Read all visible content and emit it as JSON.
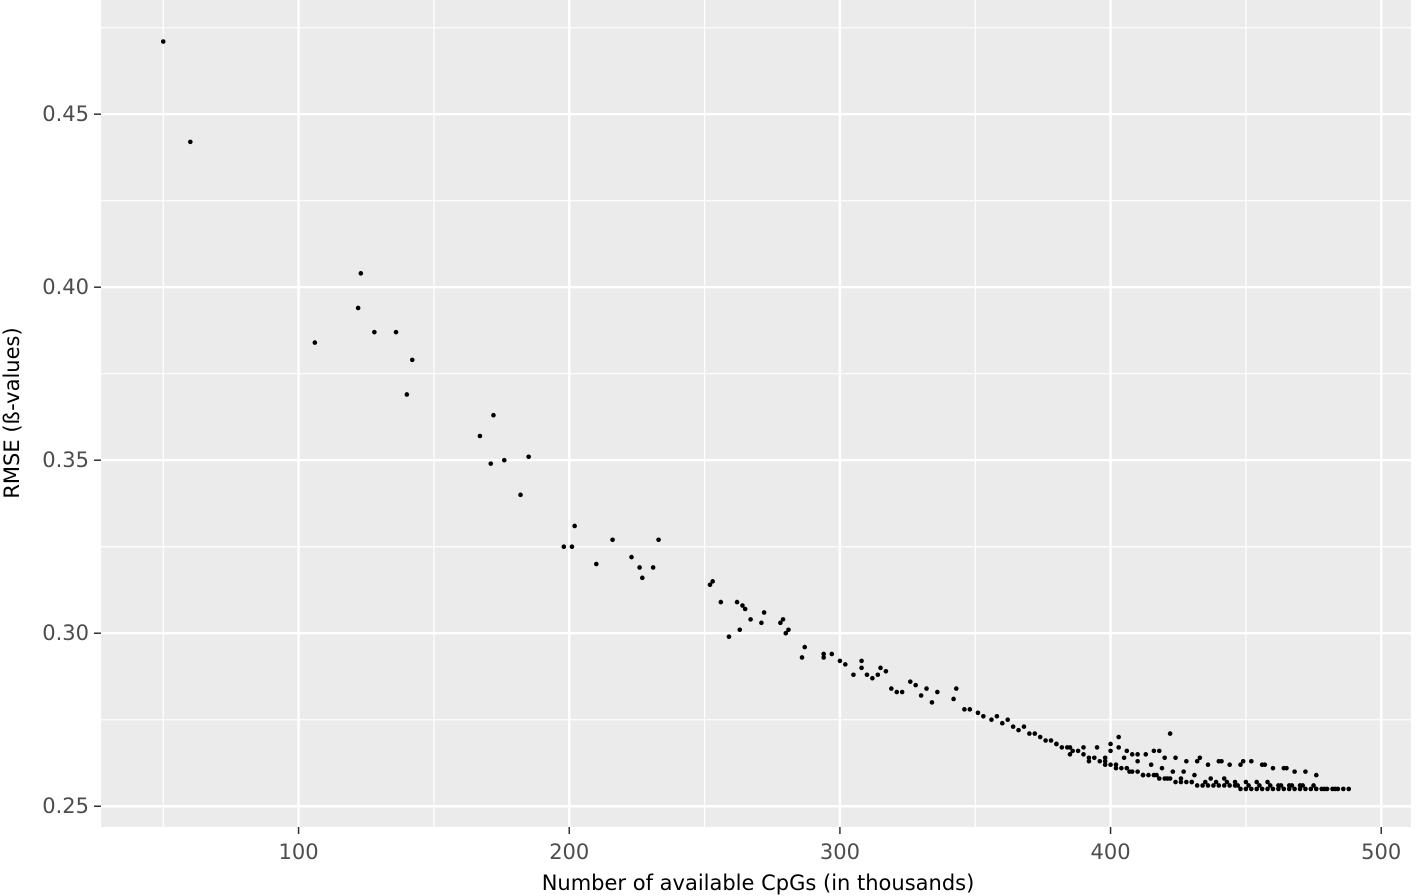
{
  "colors": {
    "panel": "#ebebeb",
    "grid_major": "#ffffff",
    "point": "#000000",
    "tick_text": "#4d4d4d",
    "title_text": "#000000"
  },
  "chart_data": {
    "type": "scatter",
    "title": "",
    "xlabel": "Number of available CpGs (in thousands)",
    "ylabel": "RMSE (ß-values)",
    "xlim": [
      27,
      511
    ],
    "ylim": [
      0.244,
      0.483
    ],
    "x_ticks": [
      100,
      200,
      300,
      400,
      500
    ],
    "x_tick_labels": [
      "100",
      "200",
      "300",
      "400",
      "500"
    ],
    "y_ticks": [
      0.25,
      0.3,
      0.35,
      0.4,
      0.45
    ],
    "y_tick_labels": [
      "0.25",
      "0.30",
      "0.35",
      "0.40",
      "0.45"
    ],
    "grid": true,
    "legend": "none",
    "marker": "small black dot",
    "point_count_note": "dense cloud from ~380k to ~490k CpGs",
    "x": [
      50,
      60,
      106,
      122,
      123,
      128,
      136,
      140,
      142,
      167,
      171,
      172,
      176,
      182,
      185,
      198,
      201,
      202,
      210,
      216,
      223,
      226,
      227,
      231,
      233,
      252,
      253,
      256,
      259,
      262,
      263,
      264,
      265,
      267,
      271,
      272,
      278,
      279,
      280,
      281,
      286,
      287,
      294,
      294,
      297,
      300,
      302,
      305,
      308,
      308,
      310,
      312,
      314,
      315,
      317,
      319,
      321,
      323,
      326,
      328,
      330,
      332,
      334,
      336,
      342,
      343,
      346,
      348,
      351,
      353,
      356,
      358,
      360,
      362,
      364,
      366,
      368,
      370,
      372,
      374,
      376,
      378,
      380,
      382,
      384,
      386,
      388,
      390,
      392,
      394,
      396,
      398,
      400,
      402,
      404,
      406,
      408,
      410,
      412,
      414,
      416,
      418,
      420,
      422,
      424,
      426,
      428,
      430,
      432,
      434,
      436,
      438,
      440,
      442,
      444,
      446,
      448,
      450,
      452,
      454,
      456,
      458,
      460,
      462,
      464,
      466,
      468,
      470,
      472,
      474,
      476,
      478,
      480,
      482,
      484,
      486,
      488
    ],
    "y": [
      0.471,
      0.442,
      0.384,
      0.394,
      0.404,
      0.387,
      0.387,
      0.369,
      0.379,
      0.357,
      0.349,
      0.363,
      0.35,
      0.34,
      0.351,
      0.325,
      0.325,
      0.331,
      0.32,
      0.327,
      0.322,
      0.319,
      0.316,
      0.319,
      0.327,
      0.314,
      0.315,
      0.309,
      0.299,
      0.309,
      0.301,
      0.308,
      0.307,
      0.304,
      0.303,
      0.306,
      0.303,
      0.304,
      0.3,
      0.301,
      0.293,
      0.296,
      0.293,
      0.294,
      0.294,
      0.292,
      0.291,
      0.288,
      0.29,
      0.292,
      0.288,
      0.287,
      0.288,
      0.29,
      0.289,
      0.284,
      0.283,
      0.283,
      0.286,
      0.285,
      0.282,
      0.284,
      0.28,
      0.283,
      0.281,
      0.284,
      0.278,
      0.278,
      0.277,
      0.276,
      0.275,
      0.276,
      0.274,
      0.275,
      0.273,
      0.272,
      0.273,
      0.271,
      0.271,
      0.27,
      0.269,
      0.269,
      0.268,
      0.267,
      0.267,
      0.266,
      0.266,
      0.265,
      0.264,
      0.264,
      0.263,
      0.263,
      0.262,
      0.262,
      0.261,
      0.261,
      0.26,
      0.26,
      0.259,
      0.259,
      0.259,
      0.258,
      0.258,
      0.258,
      0.257,
      0.257,
      0.257,
      0.257,
      0.256,
      0.256,
      0.256,
      0.256,
      0.256,
      0.256,
      0.256,
      0.256,
      0.255,
      0.255,
      0.255,
      0.255,
      0.255,
      0.255,
      0.255,
      0.255,
      0.255,
      0.255,
      0.255,
      0.255,
      0.255,
      0.255,
      0.255,
      0.255,
      0.255,
      0.255,
      0.255,
      0.255,
      0.255
    ],
    "extra_series": [
      {
        "x": [
          380,
          385,
          390,
          395,
          400,
          403,
          406,
          410,
          413,
          416,
          420,
          424,
          428,
          432,
          436,
          440,
          444,
          448,
          452,
          456,
          460,
          464,
          468,
          472,
          476
        ],
        "y": [
          0.268,
          0.267,
          0.267,
          0.267,
          0.268,
          0.267,
          0.266,
          0.265,
          0.265,
          0.266,
          0.264,
          0.264,
          0.263,
          0.263,
          0.262,
          0.263,
          0.262,
          0.262,
          0.263,
          0.262,
          0.261,
          0.261,
          0.26,
          0.26,
          0.259
        ]
      },
      {
        "x": [
          385,
          392,
          398,
          402,
          407,
          412,
          417,
          421,
          426,
          430,
          435,
          439,
          443,
          447,
          451,
          455,
          459,
          463,
          467,
          471,
          475,
          479,
          483
        ],
        "y": [
          0.265,
          0.263,
          0.262,
          0.261,
          0.26,
          0.259,
          0.259,
          0.258,
          0.258,
          0.257,
          0.257,
          0.257,
          0.257,
          0.256,
          0.256,
          0.256,
          0.256,
          0.256,
          0.256,
          0.256,
          0.256,
          0.255,
          0.255
        ]
      },
      {
        "x": [
          398,
          400,
          405,
          410,
          415,
          419,
          423,
          427,
          431,
          437,
          442,
          446,
          450,
          454,
          458,
          462,
          466,
          470
        ],
        "y": [
          0.264,
          0.266,
          0.264,
          0.263,
          0.262,
          0.261,
          0.26,
          0.26,
          0.259,
          0.258,
          0.258,
          0.257,
          0.257,
          0.257,
          0.257,
          0.256,
          0.256,
          0.256
        ]
      },
      {
        "x": [
          403,
          408,
          418,
          422,
          433,
          441,
          449,
          457,
          465
        ],
        "y": [
          0.27,
          0.265,
          0.266,
          0.271,
          0.264,
          0.263,
          0.263,
          0.262,
          0.261
        ]
      }
    ]
  }
}
